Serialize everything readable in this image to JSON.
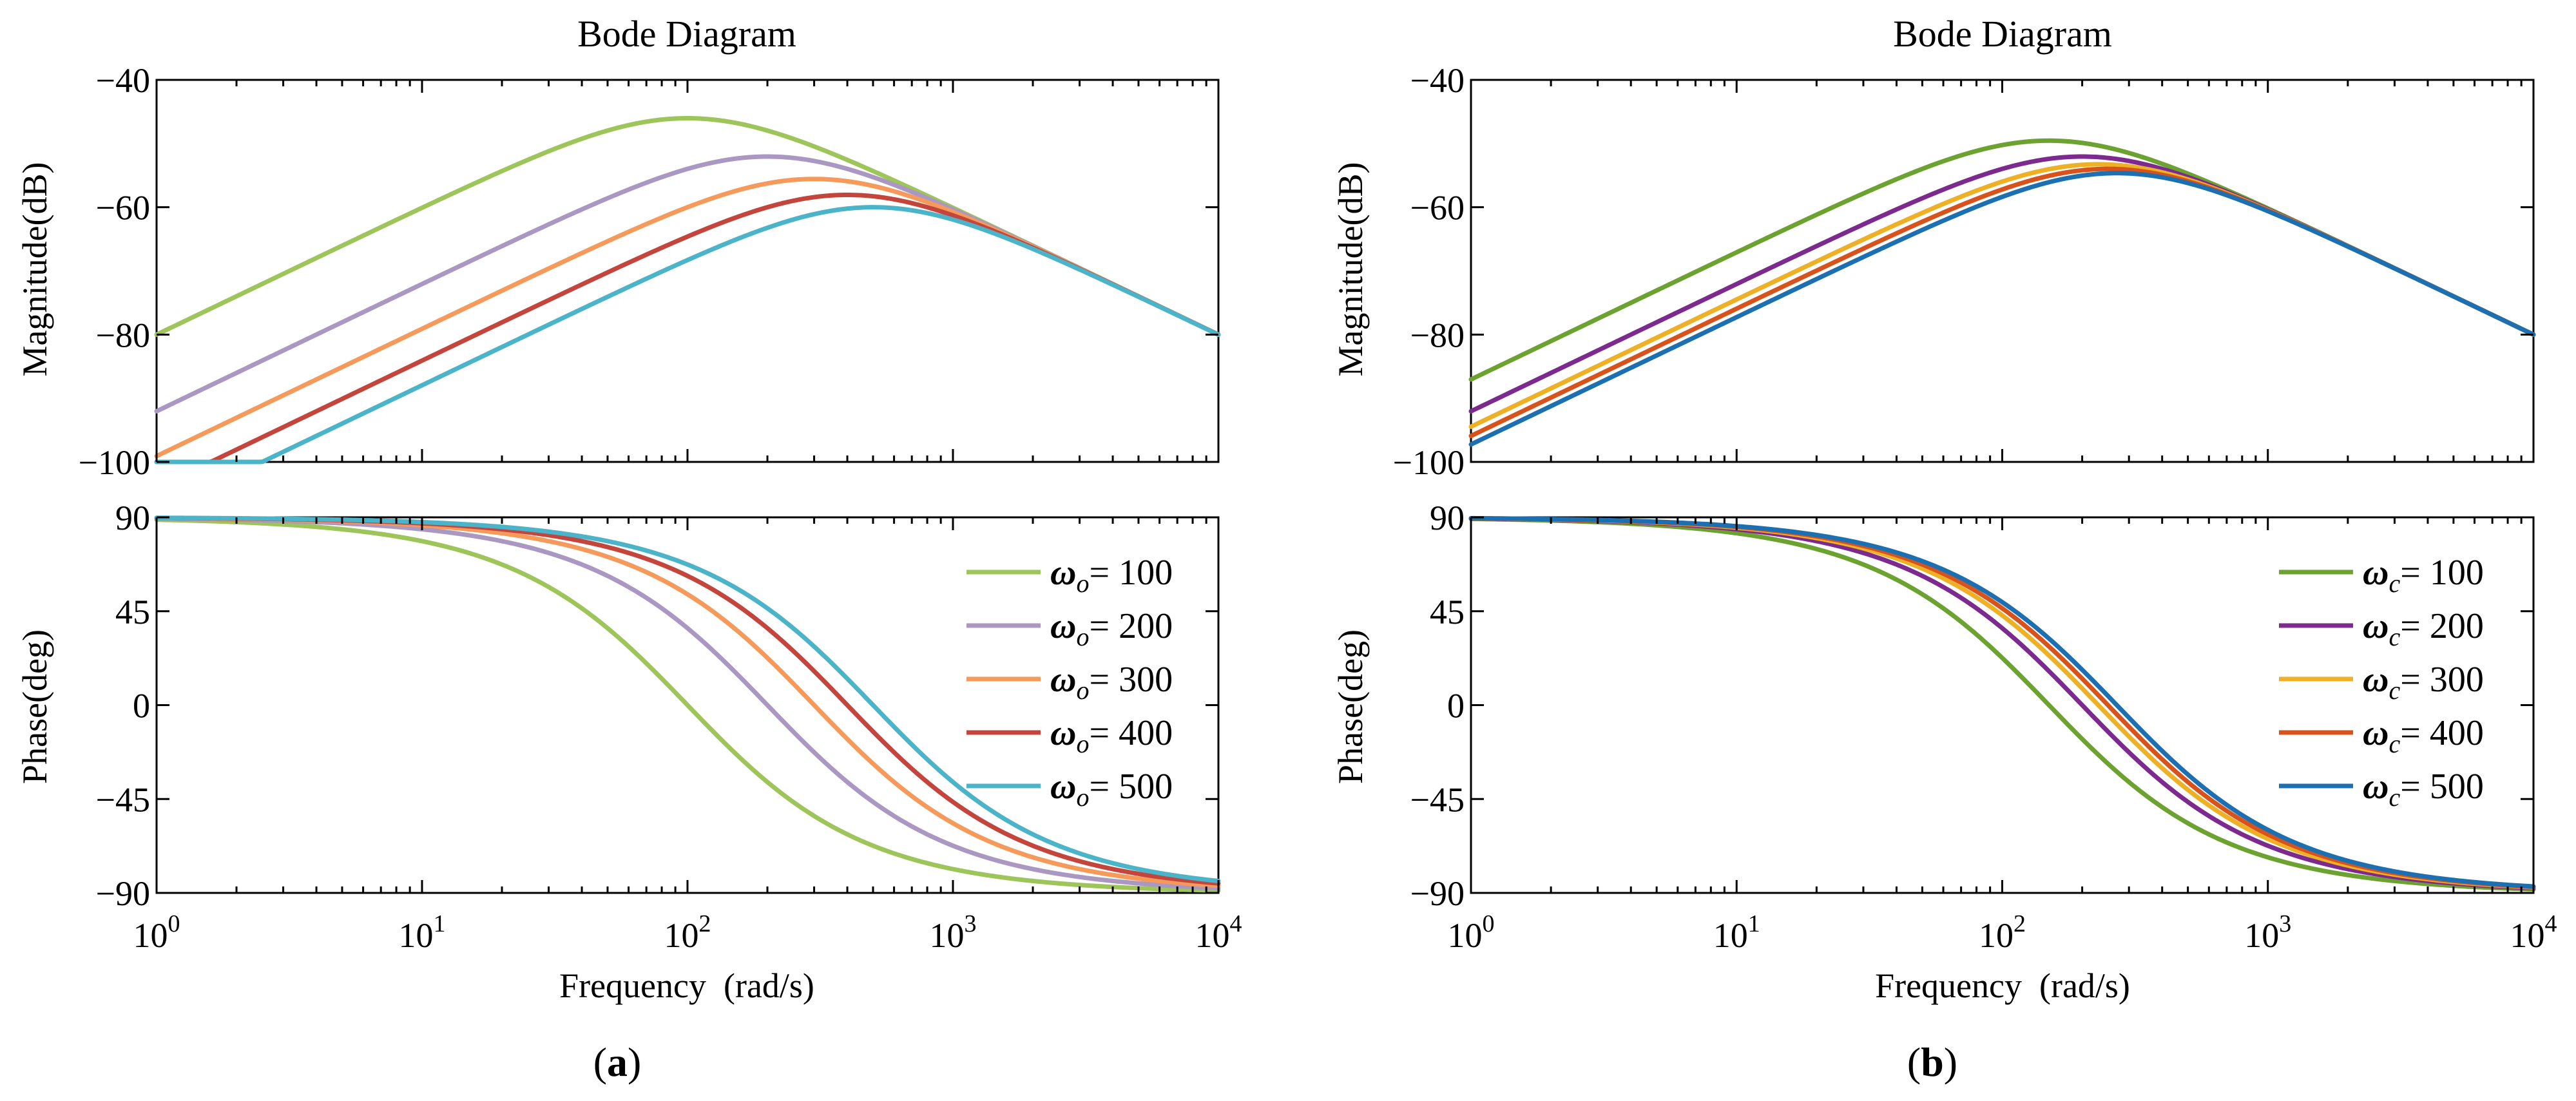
{
  "colors": {
    "a": [
      "#9dc55a",
      "#aa97c2",
      "#f59a5a",
      "#c4453b",
      "#4bb4c8"
    ],
    "b": [
      "#6ca230",
      "#7d2a8e",
      "#eeb024",
      "#d8531c",
      "#1c6fb0"
    ]
  },
  "chart_data": [
    {
      "type": "line",
      "panel_label": "a",
      "title": "Bode Diagram",
      "xlabel": "Frequency  (rad/s)",
      "xscale": "log",
      "xlim": [
        1,
        10000
      ],
      "x_ticks": [
        1,
        10,
        100,
        1000,
        10000
      ],
      "x_tick_labels": [
        {
          "base": "10",
          "exp": "0"
        },
        {
          "base": "10",
          "exp": "1"
        },
        {
          "base": "10",
          "exp": "2"
        },
        {
          "base": "10",
          "exp": "3"
        },
        {
          "base": "10",
          "exp": "4"
        }
      ],
      "magnitude": {
        "ylabel": "Magnitude(dB)",
        "ylim": [
          -100,
          -40
        ],
        "y_ticks": [
          -40,
          -60,
          -80,
          -100
        ],
        "y_tick_labels": [
          "−40",
          "−60",
          "−80",
          "−100"
        ]
      },
      "phase": {
        "ylabel": "Phase(deg)",
        "ylim": [
          -90,
          90
        ],
        "y_ticks": [
          90,
          45,
          0,
          -45,
          -90
        ],
        "y_tick_labels": [
          "90",
          "45",
          "0",
          "−45",
          "−90"
        ]
      },
      "legend_position": "right",
      "legend_symbol": "ω",
      "legend_sub": "o",
      "legend_eq": "= ",
      "series": [
        {
          "name": "ω_o = 100",
          "value": "100",
          "omega": 100
        },
        {
          "name": "ω_o = 200",
          "value": "200",
          "omega": 200
        },
        {
          "name": "ω_o = 300",
          "value": "300",
          "omega": 300
        },
        {
          "name": "ω_o = 400",
          "value": "400",
          "omega": 400
        },
        {
          "name": "ω_o = 500",
          "value": "500",
          "omega": 500
        }
      ],
      "model": "H(s)=G·s/(s+ω)^2, G=1, magnitude 20log10|H|, phase 90°−2·atan(f/ω)"
    },
    {
      "type": "line",
      "panel_label": "b",
      "title": "Bode Diagram",
      "xlabel": "Frequency  (rad/s)",
      "xscale": "log",
      "xlim": [
        1,
        10000
      ],
      "x_ticks": [
        1,
        10,
        100,
        1000,
        10000
      ],
      "x_tick_labels": [
        {
          "base": "10",
          "exp": "0"
        },
        {
          "base": "10",
          "exp": "1"
        },
        {
          "base": "10",
          "exp": "2"
        },
        {
          "base": "10",
          "exp": "3"
        },
        {
          "base": "10",
          "exp": "4"
        }
      ],
      "magnitude": {
        "ylabel": "Magnitude(dB)",
        "ylim": [
          -100,
          -40
        ],
        "y_ticks": [
          -40,
          -60,
          -80,
          -100
        ],
        "y_tick_labels": [
          "−40",
          "−60",
          "−80",
          "−100"
        ]
      },
      "phase": {
        "ylabel": "Phase(deg)",
        "ylim": [
          -90,
          90
        ],
        "y_ticks": [
          90,
          45,
          0,
          -45,
          -90
        ],
        "y_tick_labels": [
          "90",
          "45",
          "0",
          "−45",
          "−90"
        ]
      },
      "legend_position": "right",
      "legend_symbol": "ω",
      "legend_sub": "c",
      "legend_eq": "= ",
      "series": [
        {
          "name": "ω_c = 100",
          "value": "100",
          "omega": 150
        },
        {
          "name": "ω_c = 200",
          "value": "200",
          "omega": 200
        },
        {
          "name": "ω_c = 300",
          "value": "300",
          "omega": 230
        },
        {
          "name": "ω_c = 400",
          "value": "400",
          "omega": 250
        },
        {
          "name": "ω_c = 500",
          "value": "500",
          "omega": 270
        }
      ],
      "model": "H(s)=G·s/(s+ω)^2, G=1, magnitude 20log10|H|, phase 90°−2·atan(f/ω)"
    }
  ]
}
